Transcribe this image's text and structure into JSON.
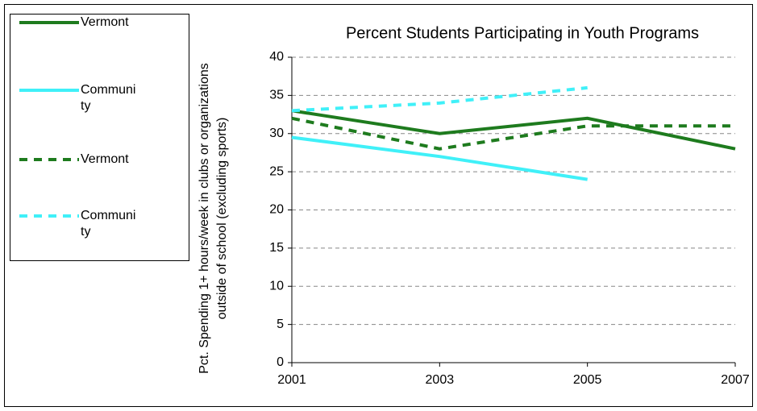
{
  "chart_data": {
    "type": "line",
    "title": "Percent Students Participating in Youth Programs",
    "y_label": "Pct. Spending 1+ hours/week in clubs or organizations outside of school (excluding sports)",
    "categories": [
      "2001",
      "2003",
      "2005",
      "2007"
    ],
    "series": [
      {
        "name": "Vermont",
        "color": "#1e7b1e",
        "style": "solid",
        "values": [
          33,
          30,
          32,
          28
        ]
      },
      {
        "name": "Community",
        "color": "#40f0f8",
        "style": "solid",
        "values": [
          29.5,
          27,
          24,
          null
        ]
      },
      {
        "name": "Vermont",
        "color": "#1e7b1e",
        "style": "dashed",
        "values": [
          32,
          28,
          31,
          31
        ]
      },
      {
        "name": "Community",
        "color": "#40f0f8",
        "style": "dashed",
        "values": [
          33,
          34,
          36,
          null
        ]
      }
    ],
    "ylim": [
      0,
      40
    ],
    "yticks": [
      0,
      5,
      10,
      15,
      20,
      25,
      30,
      35,
      40
    ],
    "grid": true
  }
}
